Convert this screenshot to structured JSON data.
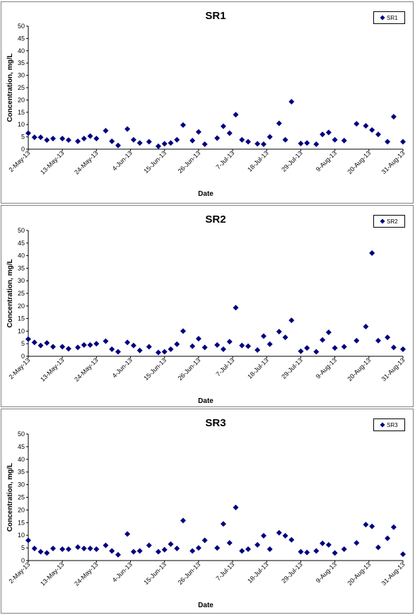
{
  "chart_data": [
    {
      "type": "scatter",
      "title": "SR1",
      "xlabel": "Date",
      "ylabel": "Concentration, mg/L",
      "ylim": [
        0,
        50
      ],
      "yticks": [
        0,
        5,
        10,
        15,
        20,
        25,
        30,
        35,
        40,
        45,
        50
      ],
      "xlim": [
        "2013-05-02",
        "2013-08-31"
      ],
      "xtick_labels": [
        "2-May-13",
        "13-May-13",
        "24-May-13",
        "4-Jun-13",
        "15-Jun-13",
        "26-Jun-13",
        "7-Jul-13",
        "18-Jul-13",
        "29-Jul-13",
        "9-Aug-13",
        "20-Aug-13",
        "31-Aug-13"
      ],
      "legend_position": "top-right",
      "marker": "diamond",
      "color": "#000080",
      "grid": false,
      "series": [
        {
          "name": "SR1",
          "x": [
            "2013-05-02",
            "2013-05-04",
            "2013-05-06",
            "2013-05-08",
            "2013-05-10",
            "2013-05-13",
            "2013-05-15",
            "2013-05-18",
            "2013-05-20",
            "2013-05-22",
            "2013-05-24",
            "2013-05-27",
            "2013-05-29",
            "2013-05-31",
            "2013-06-03",
            "2013-06-05",
            "2013-06-07",
            "2013-06-10",
            "2013-06-13",
            "2013-06-15",
            "2013-06-17",
            "2013-06-19",
            "2013-06-21",
            "2013-06-24",
            "2013-06-26",
            "2013-06-28",
            "2013-07-02",
            "2013-07-04",
            "2013-07-06",
            "2013-07-08",
            "2013-07-10",
            "2013-07-12",
            "2013-07-15",
            "2013-07-17",
            "2013-07-19",
            "2013-07-22",
            "2013-07-24",
            "2013-07-26",
            "2013-07-29",
            "2013-07-31",
            "2013-08-03",
            "2013-08-05",
            "2013-08-07",
            "2013-08-09",
            "2013-08-12",
            "2013-08-16",
            "2013-08-19",
            "2013-08-21",
            "2013-08-23",
            "2013-08-26",
            "2013-08-28",
            "2013-08-31"
          ],
          "y": [
            6.5,
            4.8,
            4.8,
            3.7,
            4.3,
            4.3,
            3.7,
            3.2,
            4.3,
            5.3,
            4.3,
            7.5,
            3.2,
            1.5,
            8.2,
            3.8,
            2.5,
            3.0,
            1.2,
            2.2,
            2.5,
            3.8,
            9.8,
            3.5,
            7.0,
            2.0,
            4.5,
            9.3,
            6.5,
            14.0,
            3.8,
            3.0,
            2.2,
            2.0,
            5.0,
            10.5,
            3.8,
            19.3,
            2.3,
            2.5,
            2.0,
            6.0,
            6.8,
            3.8,
            3.5,
            10.3,
            9.5,
            7.8,
            6.0,
            3.0,
            13.2,
            3.0
          ]
        }
      ]
    },
    {
      "type": "scatter",
      "title": "SR2",
      "xlabel": "Date",
      "ylabel": "Concentration, mg/L",
      "ylim": [
        0,
        50
      ],
      "yticks": [
        0,
        5,
        10,
        15,
        20,
        25,
        30,
        35,
        40,
        45,
        50
      ],
      "xlim": [
        "2013-05-02",
        "2013-08-31"
      ],
      "xtick_labels": [
        "2-May-13",
        "13-May-13",
        "24-May-13",
        "4-Jun-13",
        "15-Jun-13",
        "26-Jun-13",
        "7-Jul-13",
        "18-Jul-13",
        "29-Jul-13",
        "9-Aug-13",
        "20-Aug-13",
        "31-Aug-13"
      ],
      "legend_position": "top-right",
      "marker": "diamond",
      "color": "#000080",
      "grid": false,
      "series": [
        {
          "name": "SR2",
          "x": [
            "2013-05-02",
            "2013-05-04",
            "2013-05-06",
            "2013-05-08",
            "2013-05-10",
            "2013-05-13",
            "2013-05-15",
            "2013-05-18",
            "2013-05-20",
            "2013-05-22",
            "2013-05-24",
            "2013-05-27",
            "2013-05-29",
            "2013-05-31",
            "2013-06-03",
            "2013-06-05",
            "2013-06-07",
            "2013-06-10",
            "2013-06-13",
            "2013-06-15",
            "2013-06-17",
            "2013-06-19",
            "2013-06-21",
            "2013-06-24",
            "2013-06-26",
            "2013-06-28",
            "2013-07-02",
            "2013-07-04",
            "2013-07-06",
            "2013-07-08",
            "2013-07-10",
            "2013-07-12",
            "2013-07-15",
            "2013-07-17",
            "2013-07-19",
            "2013-07-22",
            "2013-07-24",
            "2013-07-26",
            "2013-07-29",
            "2013-07-31",
            "2013-08-03",
            "2013-08-05",
            "2013-08-07",
            "2013-08-09",
            "2013-08-12",
            "2013-08-16",
            "2013-08-19",
            "2013-08-21",
            "2013-08-23",
            "2013-08-26",
            "2013-08-28",
            "2013-08-31"
          ],
          "y": [
            6.8,
            5.5,
            4.3,
            5.3,
            3.8,
            3.8,
            3.0,
            3.5,
            4.5,
            4.5,
            5.0,
            6.0,
            2.8,
            1.8,
            5.5,
            4.3,
            2.3,
            3.8,
            1.5,
            1.8,
            2.8,
            4.8,
            10.0,
            4.0,
            7.0,
            3.5,
            4.5,
            2.8,
            5.8,
            19.3,
            4.3,
            4.0,
            2.5,
            8.0,
            4.8,
            9.8,
            7.5,
            14.3,
            2.0,
            3.3,
            1.8,
            6.5,
            9.5,
            3.3,
            3.8,
            6.2,
            11.8,
            41.0,
            6.2,
            7.5,
            3.5,
            2.8
          ]
        }
      ]
    },
    {
      "type": "scatter",
      "title": "SR3",
      "xlabel": "Date",
      "ylabel": "Concentration, mg/L",
      "ylim": [
        0,
        50
      ],
      "yticks": [
        0,
        5,
        10,
        15,
        20,
        25,
        30,
        35,
        40,
        45,
        50
      ],
      "xlim": [
        "2013-05-02",
        "2013-08-31"
      ],
      "xtick_labels": [
        "2-May-13",
        "13-May-13",
        "24-May-13",
        "4-Jun-13",
        "15-Jun-13",
        "26-Jun-13",
        "7-Jul-13",
        "18-Jul-13",
        "29-Jul-13",
        "9-Aug-13",
        "20-Aug-13",
        "31-Aug-13"
      ],
      "legend_position": "top-right",
      "marker": "diamond",
      "color": "#000080",
      "grid": false,
      "series": [
        {
          "name": "SR3",
          "x": [
            "2013-05-02",
            "2013-05-04",
            "2013-05-06",
            "2013-05-08",
            "2013-05-10",
            "2013-05-13",
            "2013-05-15",
            "2013-05-18",
            "2013-05-20",
            "2013-05-22",
            "2013-05-24",
            "2013-05-27",
            "2013-05-29",
            "2013-05-31",
            "2013-06-03",
            "2013-06-05",
            "2013-06-07",
            "2013-06-10",
            "2013-06-13",
            "2013-06-15",
            "2013-06-17",
            "2013-06-19",
            "2013-06-21",
            "2013-06-24",
            "2013-06-26",
            "2013-06-28",
            "2013-07-02",
            "2013-07-04",
            "2013-07-06",
            "2013-07-08",
            "2013-07-10",
            "2013-07-12",
            "2013-07-15",
            "2013-07-17",
            "2013-07-19",
            "2013-07-22",
            "2013-07-24",
            "2013-07-26",
            "2013-07-29",
            "2013-07-31",
            "2013-08-03",
            "2013-08-05",
            "2013-08-07",
            "2013-08-09",
            "2013-08-12",
            "2013-08-16",
            "2013-08-19",
            "2013-08-21",
            "2013-08-23",
            "2013-08-26",
            "2013-08-28",
            "2013-08-31"
          ],
          "y": [
            8.0,
            4.8,
            3.5,
            3.0,
            4.8,
            4.5,
            4.5,
            5.3,
            4.8,
            4.8,
            4.5,
            6.0,
            3.8,
            2.3,
            10.5,
            3.5,
            3.8,
            6.0,
            3.5,
            4.3,
            6.5,
            4.8,
            15.8,
            3.8,
            5.0,
            8.0,
            5.0,
            14.5,
            7.0,
            21.0,
            3.8,
            4.5,
            6.2,
            9.8,
            4.5,
            11.0,
            9.8,
            8.2,
            3.5,
            3.2,
            3.8,
            6.8,
            6.2,
            3.0,
            4.5,
            7.0,
            14.2,
            13.5,
            5.2,
            8.8,
            13.2,
            2.5
          ]
        }
      ]
    }
  ]
}
